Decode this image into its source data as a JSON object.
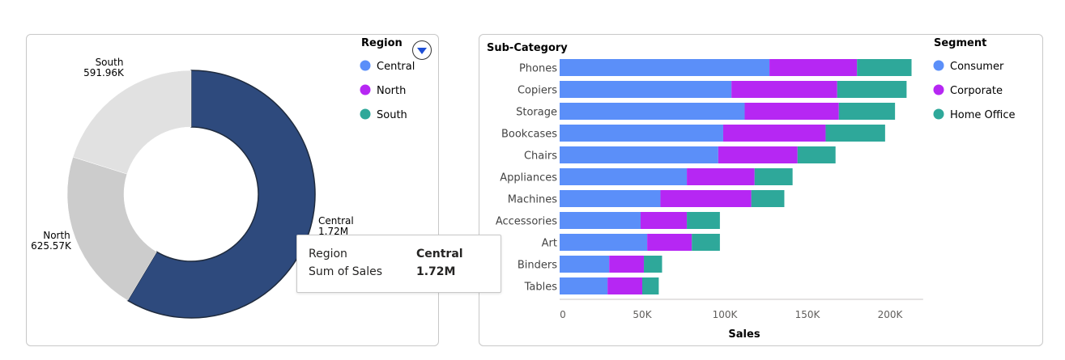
{
  "chart_data": [
    {
      "type": "pie",
      "variant": "donut",
      "legend_title": "Region",
      "legend_position": "top-right",
      "slices": [
        {
          "name": "Central",
          "value": 1720000,
          "label": "Central",
          "value_label": "1.72M",
          "color": "#2E4A7D"
        },
        {
          "name": "North",
          "value": 625570,
          "label": "North",
          "value_label": "625.57K",
          "color": "#CCCCCC"
        },
        {
          "name": "South",
          "value": 591960,
          "label": "South",
          "value_label": "591.96K",
          "color": "#E1E1E1"
        }
      ],
      "legend_colors": {
        "Central": "#5B8FF9",
        "North": "#B627F3",
        "South": "#2EA89A"
      },
      "tooltip": {
        "key1": "Region",
        "val1": "Central",
        "key2": "Sum of Sales",
        "val2": "1.72M"
      }
    },
    {
      "type": "bar",
      "orientation": "horizontal",
      "stacked": true,
      "title": "Sub-Category",
      "xlabel": "Sales",
      "xlim": [
        0,
        220000
      ],
      "xticks": [
        0,
        50000,
        100000,
        150000,
        200000
      ],
      "xtick_labels": [
        "0",
        "50K",
        "100K",
        "150K",
        "200K"
      ],
      "legend_title": "Segment",
      "legend_position": "top-right",
      "categories": [
        "Phones",
        "Copiers",
        "Storage",
        "Bookcases",
        "Chairs",
        "Appliances",
        "Machines",
        "Accessories",
        "Art",
        "Binders",
        "Tables"
      ],
      "series": [
        {
          "name": "Consumer",
          "color": "#5B8FF9",
          "values": [
            127000,
            104000,
            112000,
            99000,
            96000,
            77000,
            61000,
            49000,
            53000,
            30000,
            29000
          ]
        },
        {
          "name": "Corporate",
          "color": "#B627F3",
          "values": [
            53000,
            64000,
            57000,
            62000,
            48000,
            41000,
            55000,
            28000,
            27000,
            21000,
            21000
          ]
        },
        {
          "name": "Home Office",
          "color": "#2EA89A",
          "values": [
            33000,
            42000,
            34000,
            36000,
            23000,
            23000,
            20000,
            20000,
            17000,
            11000,
            10000
          ]
        }
      ]
    }
  ]
}
